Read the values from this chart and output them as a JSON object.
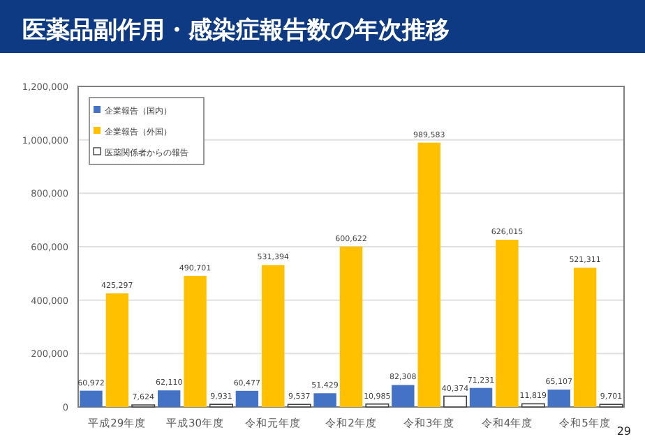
{
  "chart_data": {
    "type": "bar",
    "title": "医薬品副作用・感染症報告数の年次推移",
    "categories": [
      "平成29年度",
      "平成30年度",
      "令和元年度",
      "令和2年度",
      "令和3年度",
      "令和4年度",
      "令和5年度"
    ],
    "series": [
      {
        "name": "企業報告（国内）",
        "color": "#4472c4",
        "values": [
          60972,
          62110,
          60477,
          51429,
          82308,
          71231,
          65107
        ],
        "value_labels": [
          "60,972",
          "62,110",
          "60,477",
          "51,429",
          "82,308",
          "71,231",
          "65,107"
        ]
      },
      {
        "name": "企業報告（外国）",
        "color": "#ffc000",
        "values": [
          425297,
          490701,
          531394,
          600622,
          989583,
          626015,
          521311
        ],
        "value_labels": [
          "425,297",
          "490,701",
          "531,394",
          "600,622",
          "989,583",
          "626,015",
          "521,311"
        ]
      },
      {
        "name": "医薬関係者からの報告",
        "color": "#ffffff",
        "values": [
          7624,
          9931,
          9537,
          10985,
          40374,
          11819,
          9701
        ],
        "value_labels": [
          "7,624",
          "9,931",
          "9,537",
          "10,985",
          "40,374",
          "11,819",
          "9,701"
        ]
      }
    ],
    "ylim": [
      0,
      1200000
    ],
    "yticks": [
      0,
      {
        "value": 200000,
        "label": "200,000"
      },
      {
        "value": 400000,
        "label": "400,000"
      },
      {
        "value": 600000,
        "label": "600,000"
      },
      {
        "value": 800000,
        "label": "800,000"
      },
      {
        "value": 1000000,
        "label": "1,000,000"
      },
      {
        "value": 1200000,
        "label": "1,200,000"
      }
    ],
    "grid": "y",
    "legend": "top left",
    "annotations": [
      "29"
    ]
  }
}
